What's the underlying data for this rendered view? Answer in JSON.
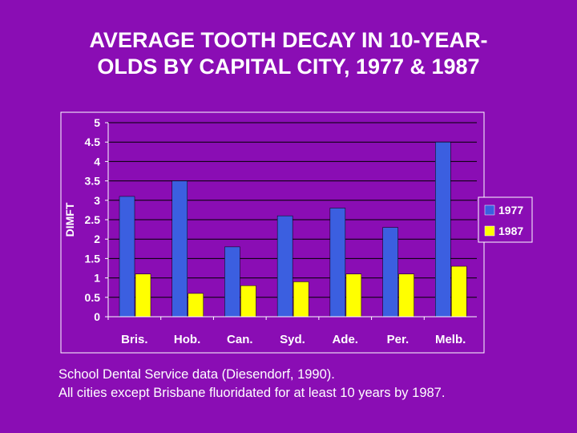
{
  "title": {
    "line1": "AVERAGE TOOTH DECAY IN 10-YEAR-",
    "line2": "OLDS BY CAPITAL CITY, 1977 & 1987"
  },
  "caption": {
    "line1": "School Dental Service data (Diesendorf, 1990).",
    "line2": "All cities except Brisbane fluoridated for at least 10 years by 1987."
  },
  "colors": {
    "background": "#8a0db4",
    "series_1977": "#3b5fe0",
    "series_1987": "#ffff00"
  },
  "chart_data": {
    "type": "bar",
    "title": "",
    "xlabel": "",
    "ylabel": "DIMFT",
    "ylim": [
      0,
      5
    ],
    "yticks": [
      "0",
      "0.5",
      "1",
      "1.5",
      "2",
      "2.5",
      "3",
      "3.5",
      "4",
      "4.5",
      "5"
    ],
    "grid": "horizontal",
    "legend": "right",
    "categories": [
      "Bris.",
      "Hob.",
      "Can.",
      "Syd.",
      "Ade.",
      "Per.",
      "Melb."
    ],
    "series": [
      {
        "name": "1977",
        "color": "#3b5fe0",
        "values": [
          3.1,
          3.5,
          1.8,
          2.6,
          2.8,
          2.3,
          4.5
        ]
      },
      {
        "name": "1987",
        "color": "#ffff00",
        "values": [
          1.1,
          0.6,
          0.8,
          0.9,
          1.1,
          1.1,
          1.3
        ]
      }
    ]
  }
}
